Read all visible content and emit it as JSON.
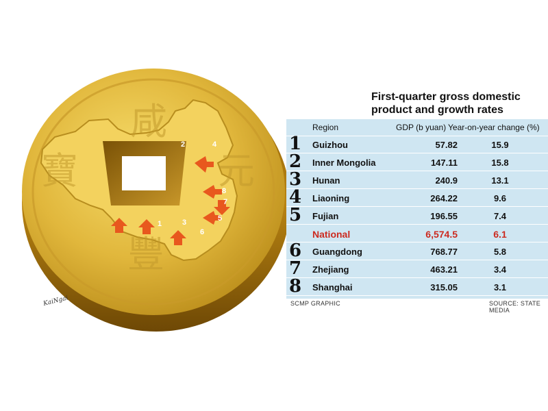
{
  "chart_data": {
    "type": "table",
    "title": "First-quarter gross domestic product and growth rates",
    "columns": [
      "Region",
      "GDP (b yuan)",
      "Year-on-year change (%)"
    ],
    "rows": [
      {
        "rank": "1",
        "region": "Guizhou",
        "gdp": "57.82",
        "change": "15.9"
      },
      {
        "rank": "2",
        "region": "Inner Mongolia",
        "gdp": "147.11",
        "change": "15.8"
      },
      {
        "rank": "3",
        "region": "Hunan",
        "gdp": "240.9",
        "change": "13.1"
      },
      {
        "rank": "4",
        "region": "Liaoning",
        "gdp": "264.22",
        "change": "9.6"
      },
      {
        "rank": "5",
        "region": "Fujian",
        "gdp": "196.55",
        "change": "7.4"
      },
      {
        "rank": "",
        "region": "National",
        "gdp": "6,574.5",
        "change": "6.1",
        "highlight": true
      },
      {
        "rank": "6",
        "region": "Guangdong",
        "gdp": "768.77",
        "change": "5.8"
      },
      {
        "rank": "7",
        "region": "Zhejiang",
        "gdp": "463.21",
        "change": "3.4"
      },
      {
        "rank": "8",
        "region": "Shanghai",
        "gdp": "315.05",
        "change": "3.1"
      }
    ]
  },
  "title_lines": [
    "First-quarter gross domestic",
    "product and growth rates"
  ],
  "footer": {
    "left": "SCMP GRAPHIC",
    "right": "SOURCE: STATE MEDIA"
  },
  "coin": {
    "characters": [
      "咸",
      "寶",
      "豐",
      "元"
    ],
    "map_numbers": [
      "1",
      "2",
      "3",
      "4",
      "5",
      "6",
      "7",
      "8"
    ],
    "signature": "KaiNgai"
  },
  "colors": {
    "coin_gold": "#d9ab2c",
    "table_bg": "#cfe6f2",
    "highlight_red": "#cc2a1f",
    "arrow_orange": "#e8581e"
  }
}
